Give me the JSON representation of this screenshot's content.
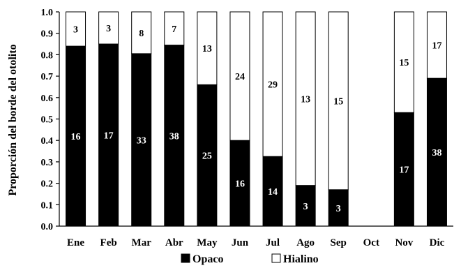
{
  "chart_data": {
    "type": "bar",
    "stacked": true,
    "ylabel": "Proporción del borde del otolito",
    "xlabel": "",
    "ylim": [
      0,
      1.0
    ],
    "yticks": [
      "0.0",
      "0.1",
      "0.2",
      "0.3",
      "0.4",
      "0.5",
      "0.6",
      "0.7",
      "0.8",
      "0.9",
      "1.0"
    ],
    "categories": [
      "Ene",
      "Feb",
      "Mar",
      "Abr",
      "May",
      "Jun",
      "Jul",
      "Ago",
      "Sep",
      "Oct",
      "Nov",
      "Dic"
    ],
    "series": [
      {
        "name": "Opaco",
        "color": "#000000",
        "values": [
          0.84,
          0.85,
          0.805,
          0.845,
          0.66,
          0.4,
          0.325,
          0.19,
          0.17,
          null,
          0.53,
          0.69
        ],
        "labels": [
          "16",
          "17",
          "33",
          "38",
          "25",
          "16",
          "14",
          "3",
          "3",
          "",
          "17",
          "38"
        ]
      },
      {
        "name": "Hialino",
        "color": "#ffffff",
        "values": [
          0.16,
          0.15,
          0.195,
          0.155,
          0.34,
          0.6,
          0.675,
          0.81,
          0.83,
          null,
          0.47,
          0.31
        ],
        "labels": [
          "3",
          "3",
          "8",
          "7",
          "13",
          "24",
          "29",
          "13",
          "15",
          "",
          "15",
          "17"
        ]
      }
    ],
    "legend": {
      "placement": "bottom",
      "items": [
        "Opaco",
        "Hialino"
      ]
    },
    "grid": false
  }
}
